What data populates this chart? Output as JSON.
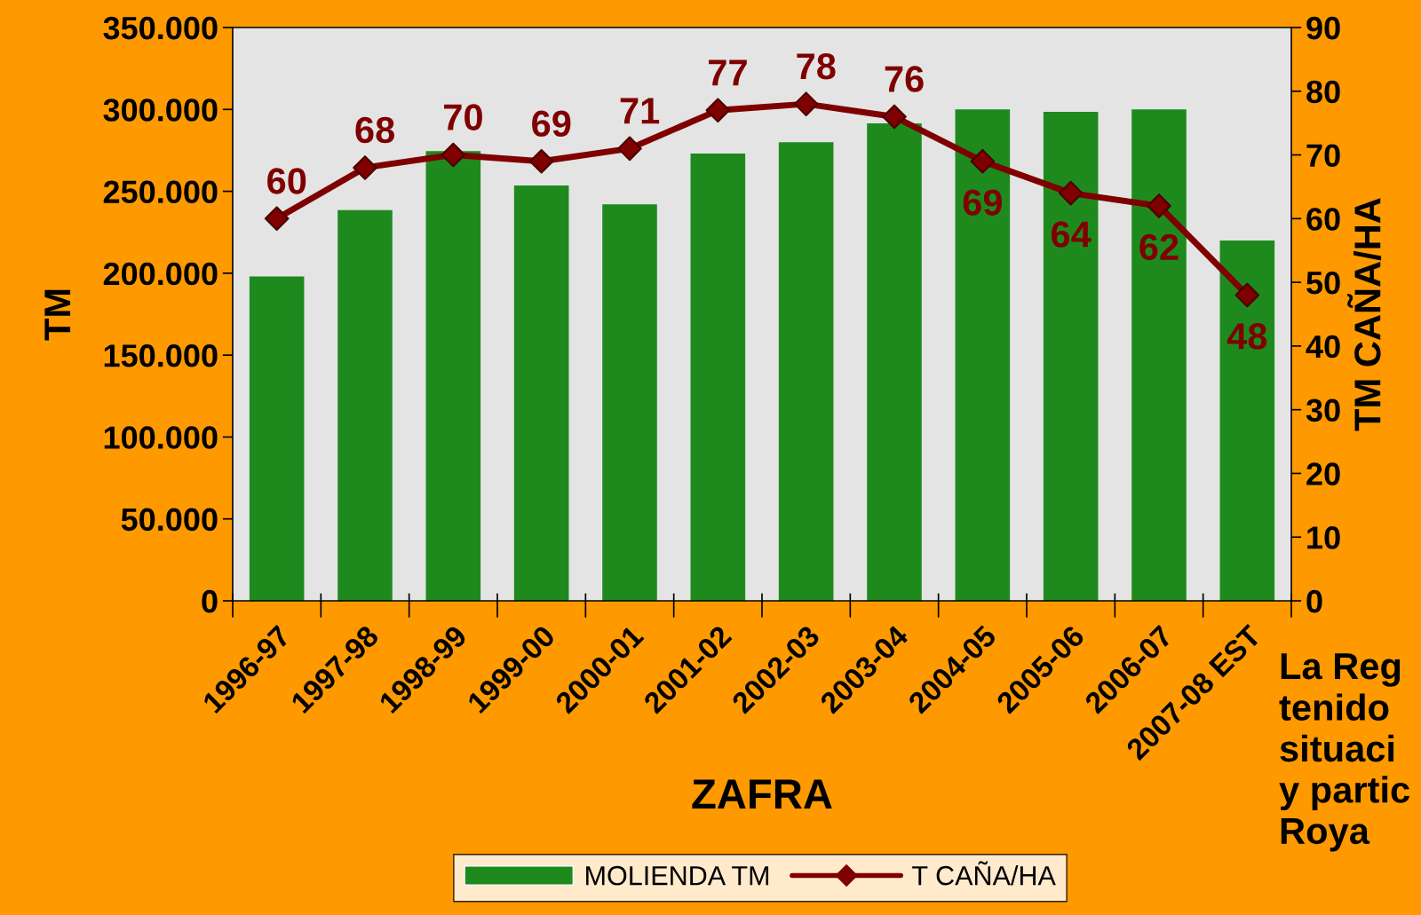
{
  "chart_data": {
    "type": "bar",
    "xlabel": "ZAFRA",
    "ylabel": "TM",
    "y2label": "TM CAÑA/HA",
    "categories": [
      "1996-97",
      "1997-98",
      "1998-99",
      "1999-00",
      "2000-01",
      "2001-02",
      "2002-03",
      "2003-04",
      "2004-05",
      "2005-06",
      "2006-07",
      "2007-08 EST"
    ],
    "series": [
      {
        "name": "MOLIENDA TM",
        "type": "bar",
        "color": "#1e8a1e",
        "values": [
          198000,
          238500,
          274500,
          253500,
          242000,
          273000,
          280000,
          291500,
          300000,
          298500,
          300000,
          220000
        ]
      },
      {
        "name": "T CAÑA/HA",
        "type": "line",
        "axis": "y2",
        "color": "#7f0000",
        "marker": "diamond",
        "line_style": "solid",
        "data_labels": true,
        "values": [
          60,
          68,
          70,
          69,
          71,
          77,
          78,
          76,
          69,
          64,
          62,
          48
        ]
      }
    ],
    "ylim": [
      0,
      350000
    ],
    "yticks": [
      {
        "value": 0,
        "label": "0"
      },
      {
        "value": 50000,
        "label": "50.000"
      },
      {
        "value": 100000,
        "label": "100.000"
      },
      {
        "value": 150000,
        "label": "150.000"
      },
      {
        "value": 200000,
        "label": "200.000"
      },
      {
        "value": 250000,
        "label": "250.000"
      },
      {
        "value": 300000,
        "label": "300.000"
      },
      {
        "value": 350000,
        "label": "350.000"
      }
    ],
    "y2lim": [
      0,
      90
    ],
    "y2ticks": [
      0,
      10,
      20,
      30,
      40,
      50,
      60,
      70,
      80,
      90
    ],
    "grid": false,
    "legend": "bottom",
    "annotations": [
      "La Reg\ntenido\nsituaci\ny partic\nRoya"
    ]
  }
}
